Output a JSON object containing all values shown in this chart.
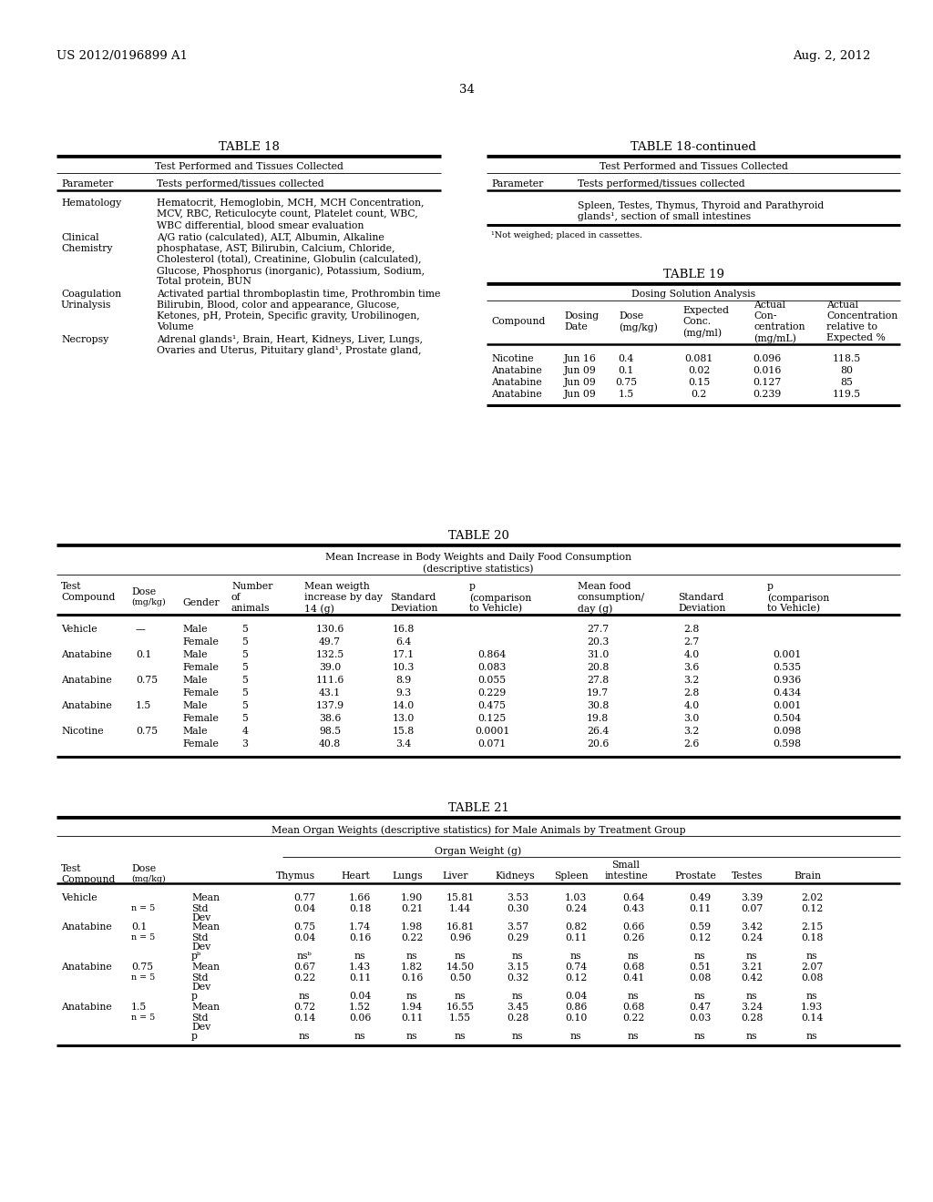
{
  "header_left": "US 2012/0196899 A1",
  "header_right": "Aug. 2, 2012",
  "page_number": "34",
  "bg_color": "#ffffff"
}
